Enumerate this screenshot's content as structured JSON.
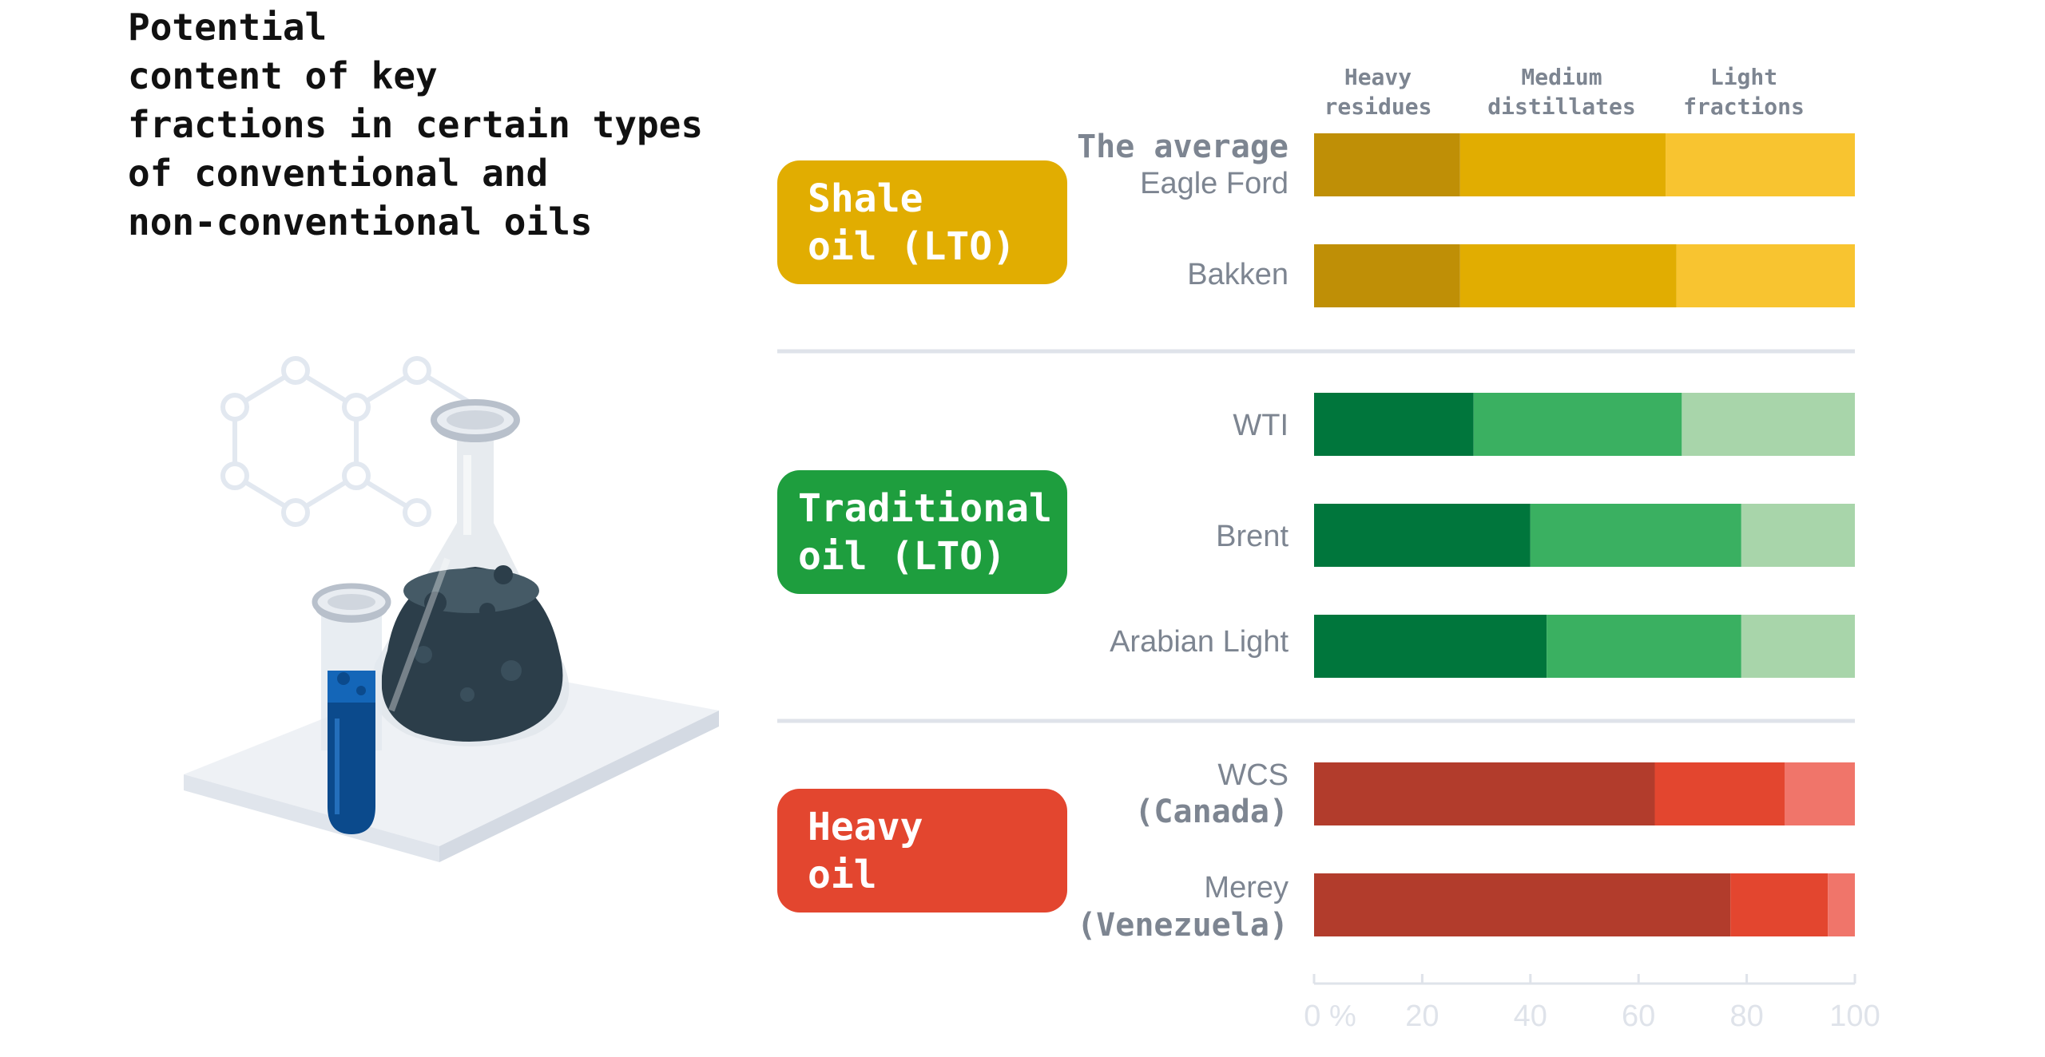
{
  "title": "Potential\ncontent of key\nfractions in certain types\nof conventional and\nnon-conventional oils",
  "colors": {
    "shale": [
      "#bf8f06",
      "#e1ad01",
      "#f8c430"
    ],
    "traditional": [
      "#00763c",
      "#3ab061",
      "#a8d5aa"
    ],
    "heavy": [
      "#b23c2c",
      "#e3462f",
      "#f0756a"
    ],
    "shale_badge": "#e1ad01",
    "traditional_badge": "#1e9e3e",
    "heavy_badge": "#e3462f",
    "divider": "#dfe3ea",
    "axis": "#dfe3ea",
    "label": "#7d8591"
  },
  "badges": {
    "shale": "Shale\noil (LTO)",
    "traditional": "Traditional\noil (LTO)",
    "heavy": "Heavy\noil"
  },
  "chart_data": {
    "type": "bar",
    "orientation": "horizontal",
    "stacked": true,
    "series": [
      {
        "name": "Heavy\nresidues"
      },
      {
        "name": "Medium\ndistillates"
      },
      {
        "name": "Light\nfractions"
      }
    ],
    "rows": [
      {
        "group": "shale",
        "label_bold": "The average",
        "label": "Eagle Ford",
        "values": [
          27,
          38,
          35
        ]
      },
      {
        "group": "shale",
        "label_bold": "",
        "label": "Bakken",
        "values": [
          27,
          40,
          33
        ]
      },
      {
        "group": "traditional",
        "label_bold": "",
        "label": "WTI",
        "values": [
          29.5,
          38.5,
          32
        ]
      },
      {
        "group": "traditional",
        "label_bold": "",
        "label": "Brent",
        "values": [
          40,
          39,
          21
        ]
      },
      {
        "group": "traditional",
        "label_bold": "",
        "label": "Arabian Light",
        "values": [
          43,
          36,
          21
        ]
      },
      {
        "group": "heavy",
        "label_bold": "(Canada)",
        "label": "WCS",
        "values": [
          63,
          24,
          13
        ]
      },
      {
        "group": "heavy",
        "label_bold": "(Venezuela)",
        "label": "Merey",
        "values": [
          77,
          18,
          5
        ]
      }
    ],
    "xlim": [
      0,
      100
    ],
    "x_ticks": [
      "0 %",
      "20",
      "40",
      "60",
      "80",
      "100"
    ],
    "grid": false
  }
}
